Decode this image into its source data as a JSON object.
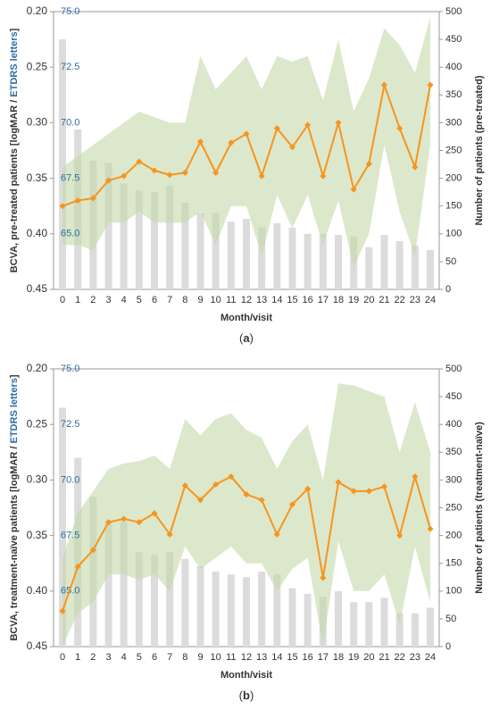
{
  "chart_data": [
    {
      "type": "bar-line-band",
      "caption_parts": [
        "(",
        "a",
        ")"
      ],
      "ylabel_parts": [
        "BCVA, pre-treated patients [logMAR / ",
        "ETDRS letters",
        "]"
      ],
      "y2label": "Number of patients (pre-treated)",
      "xlabel": "Month/visit",
      "categories": [
        "0",
        "1",
        "2",
        "3",
        "4",
        "5",
        "6",
        "7",
        "8",
        "9",
        "10",
        "11",
        "12",
        "13",
        "14",
        "15",
        "16",
        "17",
        "18",
        "19",
        "20",
        "21",
        "22",
        "23",
        "24"
      ],
      "ylim": [
        0.2,
        0.45
      ],
      "yticks": [
        {
          "value": 0.2,
          "label": "0.20"
        },
        0.25,
        {
          "value": 0.3,
          "label": "0.30"
        },
        0.35,
        {
          "value": 0.4,
          "label": "0.40"
        },
        0.45
      ],
      "etdrs_lim": [
        75,
        62.5
      ],
      "etdrs_ticks": [
        {
          "value": 75,
          "label": "75.0"
        },
        72.5,
        {
          "value": 70,
          "label": "70.0"
        },
        67.5,
        {
          "value": 65,
          "label": "65.0"
        }
      ],
      "y2lim": [
        0,
        500
      ],
      "y2ticks": [
        0,
        50,
        100,
        150,
        200,
        250,
        300,
        350,
        400,
        450,
        500
      ],
      "line_color": "#f7941d",
      "band_color": "#c5d8a8",
      "bar_color": "#dcdcdc",
      "values": [
        0.375,
        0.37,
        0.368,
        0.352,
        0.348,
        0.335,
        0.343,
        0.347,
        0.345,
        0.317,
        0.345,
        0.318,
        0.31,
        0.348,
        0.305,
        0.322,
        0.302,
        0.348,
        0.3,
        0.36,
        0.337,
        0.266,
        0.305,
        0.34,
        0.266
      ],
      "band_upper": [
        0.34,
        0.33,
        0.32,
        0.31,
        0.3,
        0.29,
        0.295,
        0.3,
        0.3,
        0.24,
        0.27,
        0.255,
        0.24,
        0.27,
        0.24,
        0.245,
        0.24,
        0.28,
        0.225,
        0.29,
        0.26,
        0.215,
        0.23,
        0.255,
        0.205
      ],
      "band_lower": [
        0.41,
        0.41,
        0.415,
        0.39,
        0.39,
        0.38,
        0.39,
        0.39,
        0.39,
        0.38,
        0.41,
        0.375,
        0.375,
        0.42,
        0.365,
        0.395,
        0.365,
        0.41,
        0.37,
        0.43,
        0.4,
        0.32,
        0.38,
        0.42,
        0.32
      ],
      "patients": [
        450,
        288,
        232,
        228,
        191,
        178,
        175,
        186,
        156,
        138,
        138,
        122,
        127,
        112,
        119,
        111,
        100,
        100,
        98,
        95,
        76,
        98,
        87,
        79,
        71
      ]
    },
    {
      "type": "bar-line-band",
      "caption_parts": [
        "(",
        "b",
        ")"
      ],
      "ylabel_parts": [
        "BCVA, treatment-naïve patients [logMAR / ",
        "ETDRS letters",
        "]"
      ],
      "y2label": "Number of patients (treatment-naïve)",
      "xlabel": "Month/visit",
      "categories": [
        "0",
        "1",
        "2",
        "3",
        "4",
        "5",
        "6",
        "7",
        "8",
        "9",
        "10",
        "11",
        "12",
        "13",
        "14",
        "15",
        "16",
        "17",
        "18",
        "19",
        "20",
        "21",
        "22",
        "23",
        "24"
      ],
      "ylim": [
        0.2,
        0.45
      ],
      "yticks": [
        {
          "value": 0.2,
          "label": "0.20"
        },
        0.25,
        {
          "value": 0.3,
          "label": "0.30"
        },
        0.35,
        {
          "value": 0.4,
          "label": "0.40"
        },
        0.45
      ],
      "etdrs_lim": [
        75,
        62.5
      ],
      "etdrs_ticks": [
        {
          "value": 75,
          "label": "75.0"
        },
        72.5,
        {
          "value": 70,
          "label": "70.0"
        },
        67.5,
        {
          "value": 65,
          "label": "65.0"
        }
      ],
      "y2lim": [
        0,
        500
      ],
      "y2ticks": [
        0,
        50,
        100,
        150,
        200,
        250,
        300,
        350,
        400,
        450,
        500
      ],
      "line_color": "#f7941d",
      "band_color": "#c5d8a8",
      "bar_color": "#dcdcdc",
      "values": [
        0.418,
        0.378,
        0.363,
        0.338,
        0.335,
        0.338,
        0.33,
        0.349,
        0.305,
        0.318,
        0.304,
        0.297,
        0.313,
        0.318,
        0.349,
        0.322,
        0.308,
        0.388,
        0.302,
        0.31,
        0.31,
        0.306,
        0.35,
        0.297,
        0.344
      ],
      "band_upper": [
        0.37,
        0.33,
        0.31,
        0.29,
        0.285,
        0.283,
        0.278,
        0.29,
        0.245,
        0.26,
        0.245,
        0.24,
        0.255,
        0.262,
        0.29,
        0.265,
        0.25,
        0.3,
        0.213,
        0.215,
        0.22,
        0.225,
        0.275,
        0.23,
        0.275
      ],
      "band_lower": [
        0.45,
        0.42,
        0.41,
        0.385,
        0.385,
        0.39,
        0.385,
        0.4,
        0.36,
        0.38,
        0.37,
        0.36,
        0.375,
        0.375,
        0.4,
        0.38,
        0.37,
        0.45,
        0.355,
        0.4,
        0.4,
        0.385,
        0.43,
        0.36,
        0.41
      ],
      "patients": [
        430,
        340,
        270,
        225,
        225,
        170,
        165,
        170,
        158,
        145,
        135,
        130,
        125,
        135,
        130,
        105,
        95,
        90,
        100,
        80,
        80,
        88,
        60,
        60,
        70
      ]
    }
  ]
}
